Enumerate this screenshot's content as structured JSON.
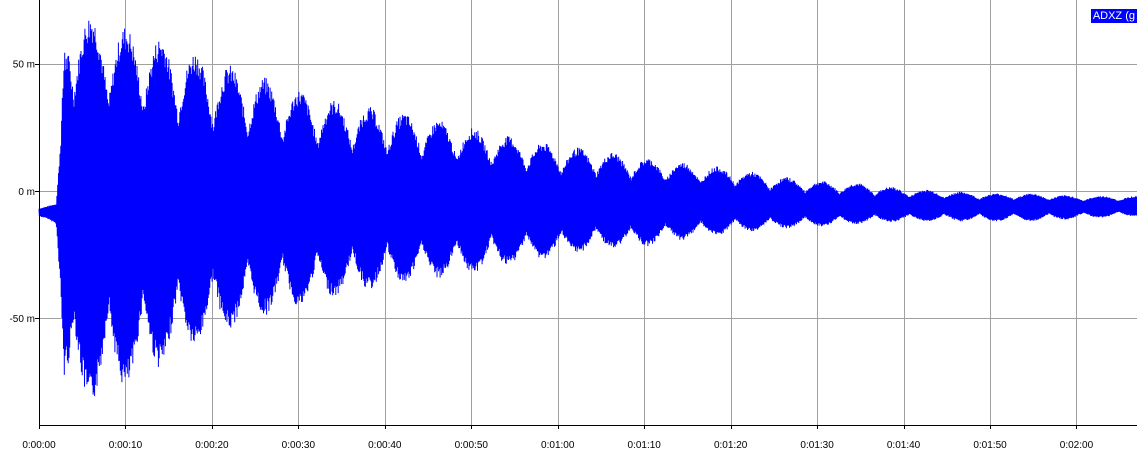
{
  "legend": {
    "label": "ADXZ (g"
  },
  "colors": {
    "signal": "#0000ff",
    "grid": "#a0a0a0",
    "axis": "#000000",
    "background": "#ffffff"
  },
  "chart_data": {
    "type": "line",
    "title": "",
    "xlabel": "",
    "ylabel": "",
    "grid": true,
    "legend_placement": "top-right",
    "y_unit_suffix": "m",
    "xlim": [
      0,
      127
    ],
    "ylim": [
      -92,
      75
    ],
    "x_tick_values": [
      0,
      10,
      20,
      30,
      40,
      50,
      60,
      70,
      80,
      90,
      100,
      110,
      120
    ],
    "x_tick_labels": [
      "0:00:00",
      "0:00:10",
      "0:00:20",
      "0:00:30",
      "0:00:40",
      "0:00:50",
      "0:01:00",
      "0:01:10",
      "0:01:20",
      "0:01:30",
      "0:01:40",
      "0:01:50",
      "0:02:00"
    ],
    "y_tick_values": [
      50,
      0,
      -50
    ],
    "y_tick_labels": [
      "50 m",
      "0 m",
      "-50 m"
    ],
    "series": [
      {
        "values_description": "",
        "x": [
          0,
          1,
          2,
          2.5,
          3,
          3.5,
          4,
          5,
          7,
          10,
          13,
          16,
          20,
          25,
          30,
          35,
          40,
          45,
          50,
          55,
          60,
          65,
          70,
          75,
          80,
          85,
          90,
          95,
          100,
          105,
          110,
          115,
          120,
          127
        ],
        "upper": [
          -7,
          -6,
          -5,
          20,
          62,
          74,
          73,
          71,
          68,
          65,
          62,
          58,
          52,
          46,
          40,
          35,
          32,
          29,
          25,
          21,
          18,
          16,
          13,
          11,
          9,
          6,
          4,
          3,
          1,
          0,
          -1,
          -1,
          -2,
          -2
        ],
        "lower": [
          -10,
          -11,
          -13,
          -40,
          -80,
          -90,
          -89,
          -86,
          -82,
          -78,
          -72,
          -65,
          -58,
          -50,
          -46,
          -41,
          -38,
          -35,
          -33,
          -29,
          -26,
          -23,
          -22,
          -19,
          -17,
          -15,
          -14,
          -13,
          -12,
          -12,
          -12,
          -12,
          -11,
          -10
        ],
        "center": [
          -8,
          -8,
          -8,
          -6,
          -4,
          -3,
          -3,
          -3,
          -3,
          -3,
          -4,
          -4,
          -4,
          -4,
          -4,
          -4,
          -4,
          -4,
          -4,
          -4,
          -5,
          -5,
          -5,
          -5,
          -5,
          -6,
          -6,
          -6,
          -6,
          -6,
          -6,
          -6,
          -6,
          -6
        ]
      }
    ]
  }
}
